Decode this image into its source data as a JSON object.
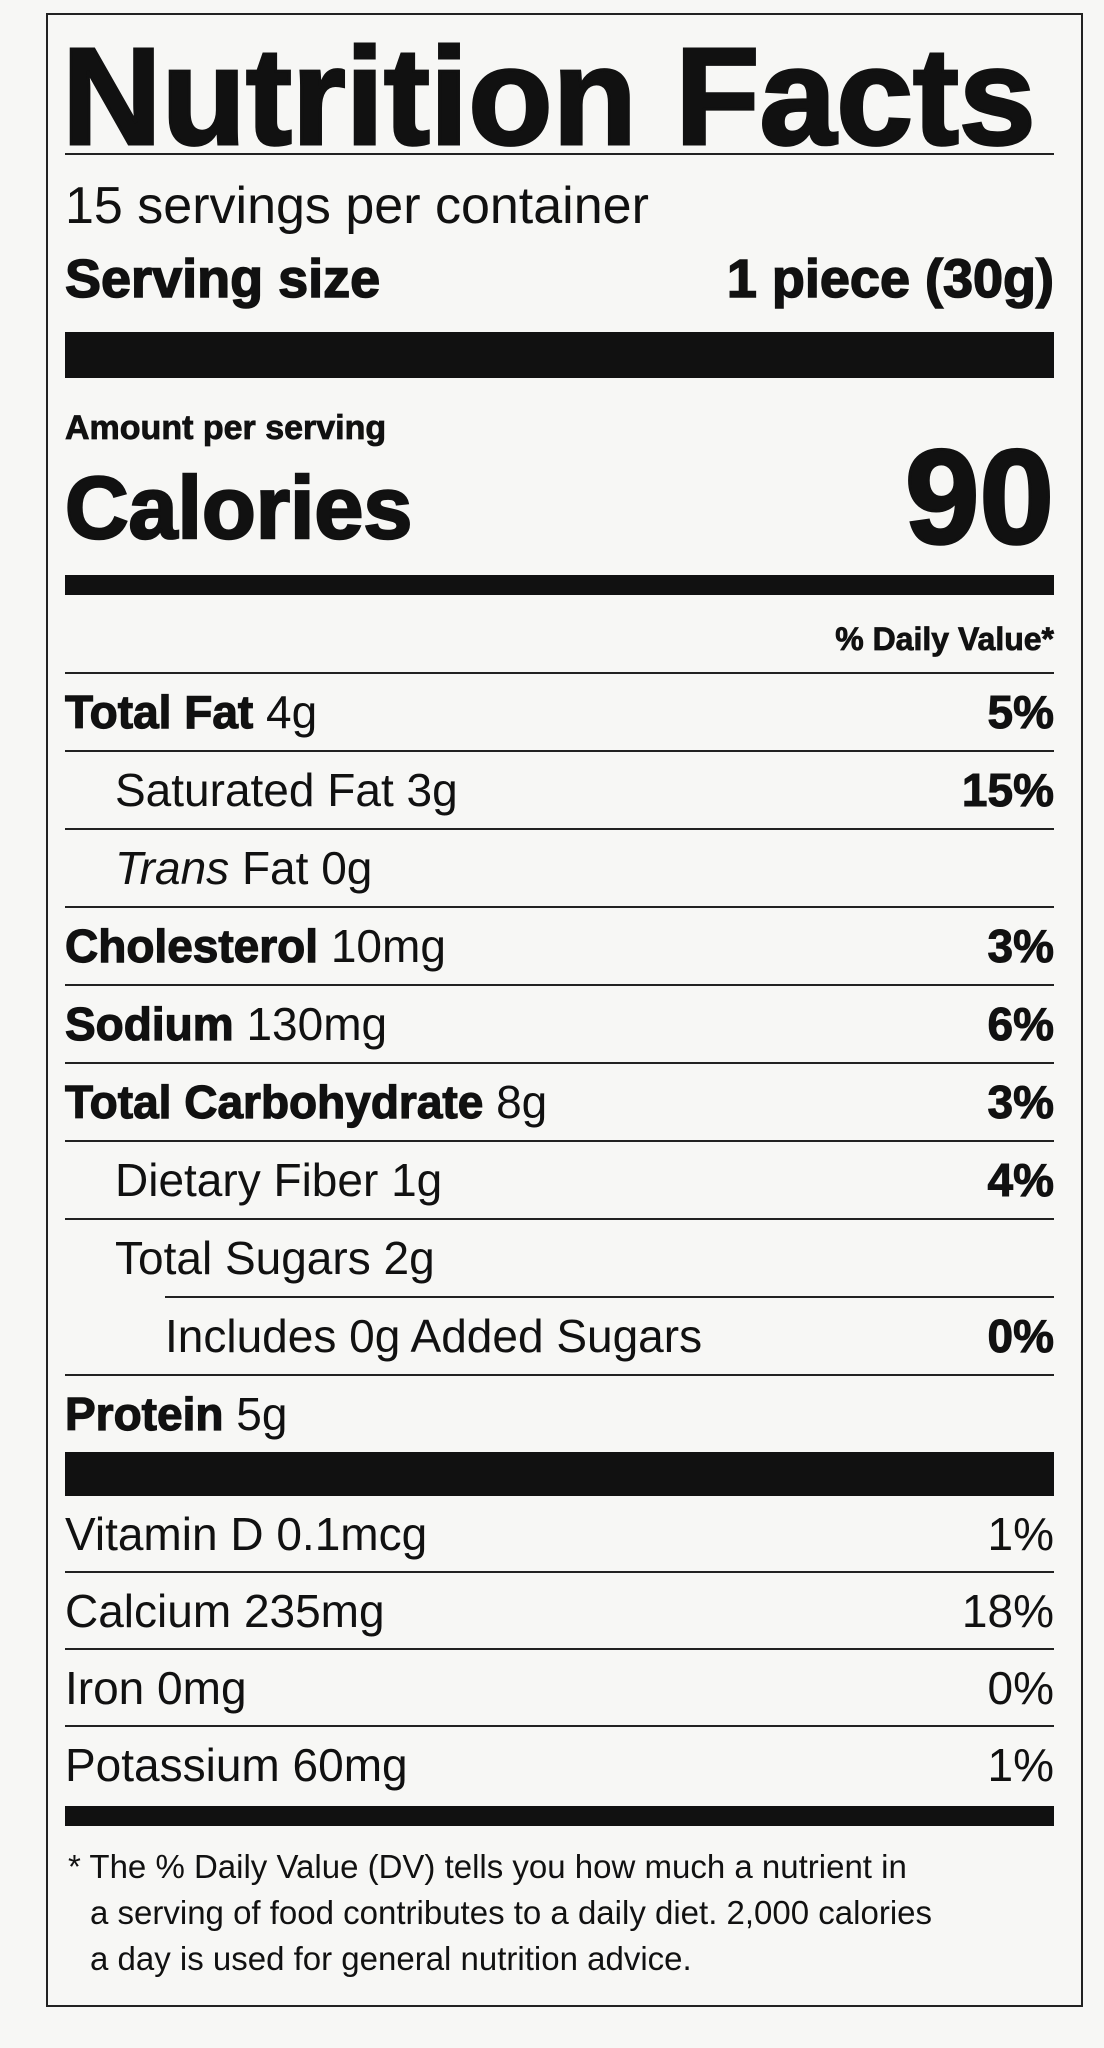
{
  "header": {
    "title": "Nutrition Facts",
    "servings": "15 servings per container",
    "serving_size_label": "Serving size",
    "serving_size": "1 piece (30g)"
  },
  "calories": {
    "amount_label": "Amount per serving",
    "label": "Calories",
    "value": "90"
  },
  "dv_header": "% Daily Value*",
  "nutrients": [
    {
      "name": "Total Fat",
      "amount": "4g",
      "dv": "5%",
      "subitems": [
        {
          "name": "Saturated Fat",
          "amount": "3g",
          "dv": "15%"
        },
        {
          "name_italic": "Trans",
          "name": "Fat",
          "amount": "0g"
        }
      ]
    },
    {
      "name": "Cholesterol",
      "amount": "10mg",
      "dv": "3%"
    },
    {
      "name": "Sodium",
      "amount": "130mg",
      "dv": "6%"
    },
    {
      "name": "Total Carbohydrate",
      "amount": "8g",
      "dv": "3%",
      "subitems": [
        {
          "name": "Dietary Fiber",
          "amount": "1g",
          "dv": "4%"
        },
        {
          "name": "Total Sugars",
          "amount": "2g",
          "subitems": [
            {
              "name": "Includes 0g Added Sugars",
              "dv": "0%"
            }
          ]
        }
      ]
    },
    {
      "name": "Protein",
      "amount": "5g"
    }
  ],
  "vitamins": [
    {
      "name": "Vitamin D",
      "amount": "0.1mcg",
      "dv": "1%"
    },
    {
      "name": "Calcium",
      "amount": "235mg",
      "dv": "18%"
    },
    {
      "name": "Iron",
      "amount": "0mg",
      "dv": "0%"
    },
    {
      "name": "Potassium",
      "amount": "60mg",
      "dv": "1%"
    }
  ],
  "footnote": [
    "* The % Daily Value (DV) tells you how much a nutrient in",
    "a serving of food contributes to a daily diet. 2,000 calories",
    "a day is used for general nutrition advice."
  ]
}
